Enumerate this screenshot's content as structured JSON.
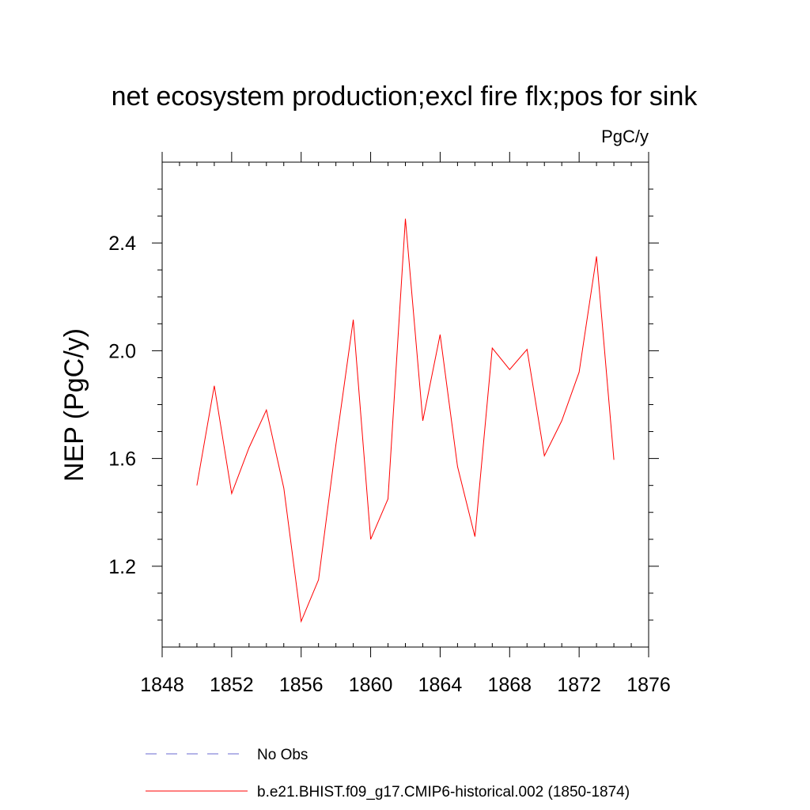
{
  "chart_data": {
    "type": "line",
    "title": "net ecosystem production;excl fire flx;pos for sink",
    "units": "PgC/y",
    "xlabel": "",
    "ylabel": "NEP  (PgC/y)",
    "xlim": [
      1848,
      1876
    ],
    "ylim": [
      0.9,
      2.7
    ],
    "x_ticks": [
      1848,
      1852,
      1856,
      1860,
      1864,
      1868,
      1872,
      1876
    ],
    "x_tick_labels": [
      "1848",
      "1852",
      "1856",
      "1860",
      "1864",
      "1868",
      "1872",
      "1876"
    ],
    "y_ticks": [
      1.2,
      1.6,
      2.0,
      2.4
    ],
    "y_tick_labels": [
      "1.2",
      "1.6",
      "2.0",
      "2.4"
    ],
    "grid": false,
    "legend_placement": "bottom",
    "series": [
      {
        "name": "b.e21.BHIST.f09_g17.CMIP6-historical.002 (1850-1874)",
        "color": "#ff0000",
        "style": "solid",
        "x": [
          1850,
          1851,
          1852,
          1853,
          1854,
          1855,
          1856,
          1857,
          1858,
          1859,
          1860,
          1861,
          1862,
          1863,
          1864,
          1865,
          1866,
          1867,
          1868,
          1869,
          1870,
          1871,
          1872,
          1873,
          1874
        ],
        "values": [
          1.5,
          1.87,
          1.47,
          1.64,
          1.78,
          1.49,
          0.995,
          1.15,
          1.65,
          2.115,
          1.3,
          1.45,
          2.49,
          1.74,
          2.06,
          1.57,
          1.31,
          2.01,
          1.93,
          2.005,
          1.61,
          1.74,
          1.92,
          2.35,
          1.595
        ]
      }
    ],
    "legend": [
      {
        "label": "No Obs",
        "color": "#6a6ad0",
        "style": "dashed"
      },
      {
        "label": "b.e21.BHIST.f09_g17.CMIP6-historical.002 (1850-1874)",
        "color": "#ff0000",
        "style": "solid"
      }
    ]
  }
}
